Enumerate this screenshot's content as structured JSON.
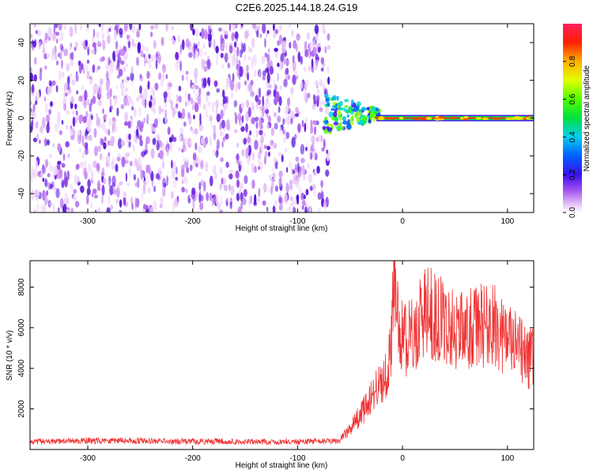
{
  "title": "C2E6.2025.144.18.24.G19",
  "colors": {
    "snr_line": "#ee3333",
    "spectrogram_noise": "#7b2fe0",
    "background": "#ffffff"
  },
  "chart_data": [
    {
      "type": "heatmap",
      "xlabel": "Height of straight line (km)",
      "ylabel": "Frequency (Hz)",
      "xlim": [
        -355,
        125
      ],
      "ylim": [
        -50,
        50
      ],
      "xticks": [
        -300,
        -200,
        -100,
        0,
        100
      ],
      "yticks": [
        -40,
        -20,
        0,
        20,
        40
      ],
      "colorbar": {
        "label": "Normalized spectral amplitude",
        "range": [
          0,
          1
        ],
        "ticks": [
          0,
          0.2,
          0.4,
          0.6,
          0.8
        ],
        "tick_labels": [
          "0.0",
          "0.2",
          "0.4",
          "0.6",
          "0.8"
        ]
      },
      "features": {
        "noise_region_x": [
          -355,
          -70
        ],
        "transition_region_x": [
          -75,
          -20
        ],
        "carrier_line_x": [
          -25,
          125
        ],
        "carrier_frequency_hz": 0
      }
    },
    {
      "type": "line",
      "xlabel": "Height of straight line (km)",
      "ylabel": "SNR (10 * v/v)",
      "xlim": [
        -355,
        125
      ],
      "ylim": [
        0,
        9300
      ],
      "xticks": [
        -300,
        -200,
        -100,
        0,
        100
      ],
      "yticks": [
        2000,
        4000,
        6000,
        8000
      ],
      "series": [
        {
          "x": [
            -355,
            -330,
            -300,
            -270,
            -240,
            -210,
            -180,
            -150,
            -120,
            -90,
            -60,
            -52,
            -45,
            -40,
            -35,
            -30,
            -25,
            -20,
            -15,
            -10,
            -8,
            -5,
            0,
            10,
            20,
            30,
            40,
            50,
            60,
            70,
            80,
            90,
            100,
            110,
            120,
            125
          ],
          "y": [
            400,
            420,
            450,
            480,
            430,
            420,
            420,
            400,
            400,
            410,
            450,
            900,
            1400,
            1700,
            2100,
            2600,
            3000,
            3300,
            3800,
            5500,
            8900,
            6600,
            5500,
            5500,
            6800,
            6600,
            6200,
            6000,
            5800,
            6000,
            6200,
            6000,
            5400,
            5000,
            4400,
            4600
          ]
        }
      ]
    }
  ]
}
